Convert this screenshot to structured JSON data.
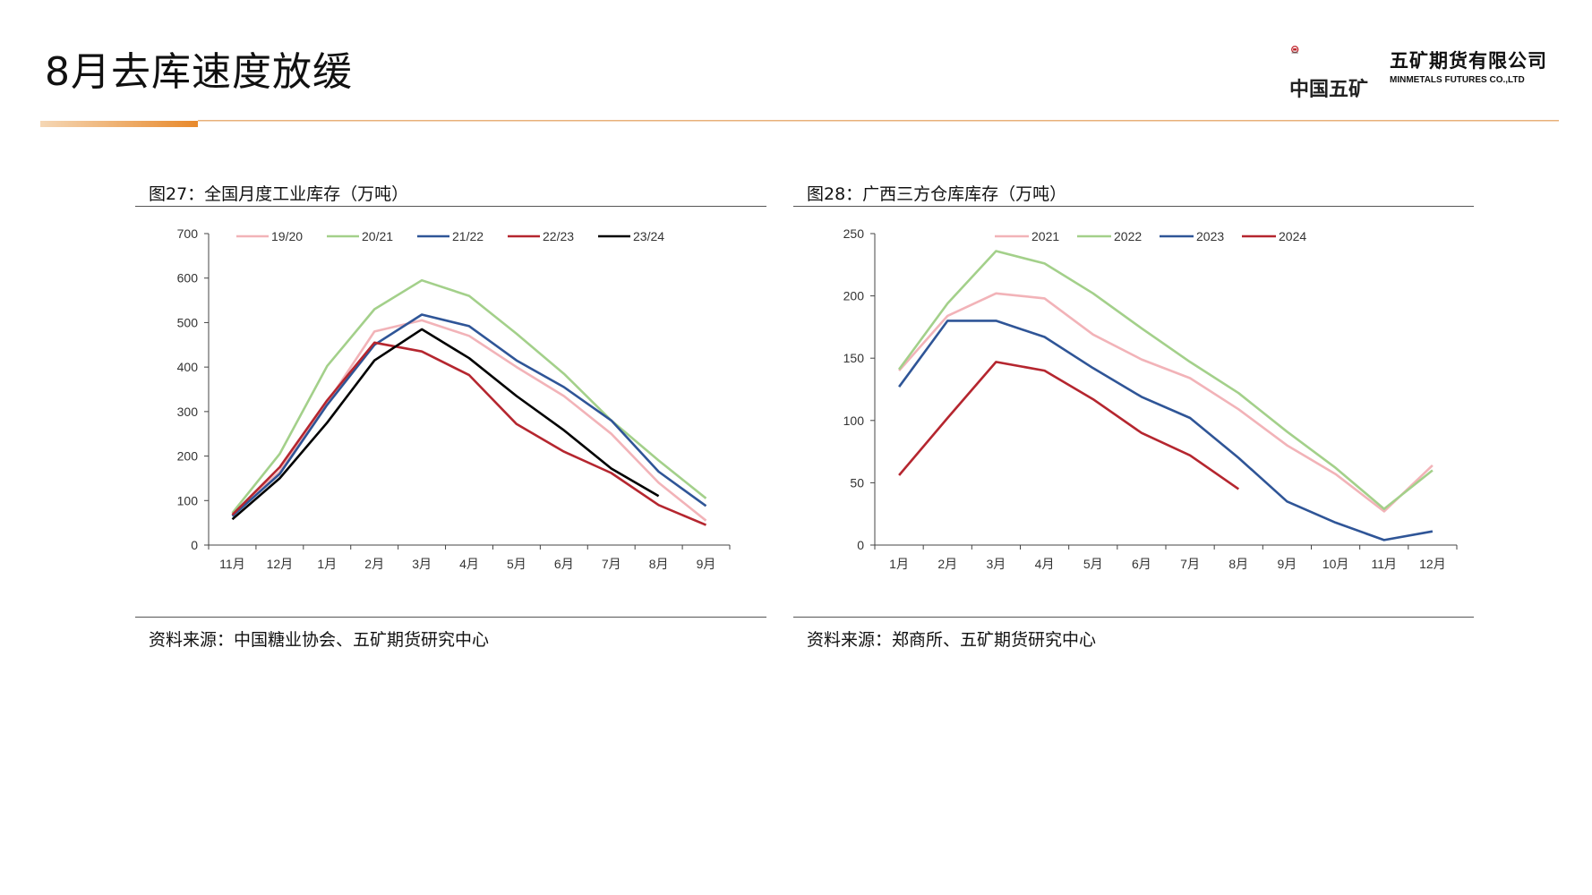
{
  "page": {
    "title": "8月去库速度放缓"
  },
  "logo": {
    "cn_name": "中国五矿",
    "company_cn": "五矿期货有限公司",
    "company_en": "MINMETALS FUTURES CO.,LTD",
    "emblem_text": "MINMETALS"
  },
  "colors": {
    "accent": "#e8892b",
    "accent_light": "#f5d7b5"
  },
  "chart_data": [
    {
      "type": "line",
      "title": "图27：全国月度工业库存（万吨）",
      "source": "资料来源：中国糖业协会、五矿期货研究中心",
      "categories": [
        "11月",
        "12月",
        "1月",
        "2月",
        "3月",
        "4月",
        "5月",
        "6月",
        "7月",
        "8月",
        "9月"
      ],
      "ylim": [
        0,
        700
      ],
      "yticks": [
        0,
        100,
        200,
        300,
        400,
        500,
        600,
        700
      ],
      "legend_position": "top",
      "series": [
        {
          "name": "19/20",
          "color": "#f2b3b8",
          "values": [
            68,
            165,
            320,
            480,
            505,
            470,
            400,
            335,
            250,
            140,
            55
          ]
        },
        {
          "name": "20/21",
          "color": "#a3d08a",
          "values": [
            72,
            205,
            402,
            530,
            595,
            560,
            475,
            385,
            280,
            190,
            105
          ]
        },
        {
          "name": "21/22",
          "color": "#2f5597",
          "values": [
            65,
            160,
            315,
            450,
            518,
            492,
            415,
            355,
            280,
            165,
            88
          ]
        },
        {
          "name": "22/23",
          "color": "#b5262f",
          "values": [
            68,
            175,
            325,
            455,
            435,
            382,
            272,
            210,
            162,
            90,
            45
          ]
        },
        {
          "name": "23/24",
          "color": "#000000",
          "values": [
            58,
            150,
            275,
            415,
            485,
            420,
            335,
            258,
            172,
            110,
            null
          ]
        }
      ]
    },
    {
      "type": "line",
      "title": "图28：广西三方仓库库存（万吨）",
      "source": "资料来源：郑商所、五矿期货研究中心",
      "categories": [
        "1月",
        "2月",
        "3月",
        "4月",
        "5月",
        "6月",
        "7月",
        "8月",
        "9月",
        "10月",
        "11月",
        "12月"
      ],
      "ylim": [
        0,
        250
      ],
      "yticks": [
        0,
        50,
        100,
        150,
        200,
        250
      ],
      "legend_position": "top",
      "series": [
        {
          "name": "2021",
          "color": "#f2b3b8",
          "values": [
            140,
            184,
            202,
            198,
            169,
            149,
            134,
            109,
            80,
            57,
            27,
            64
          ]
        },
        {
          "name": "2022",
          "color": "#a3d08a",
          "values": [
            141,
            194,
            236,
            226,
            202,
            174,
            147,
            122,
            91,
            62,
            29,
            60
          ]
        },
        {
          "name": "2023",
          "color": "#2f5597",
          "values": [
            127,
            180,
            180,
            167,
            142,
            119,
            102,
            70,
            35,
            18,
            4,
            11
          ]
        },
        {
          "name": "2024",
          "color": "#b5262f",
          "values": [
            56,
            102,
            147,
            140,
            117,
            90,
            72,
            45,
            null,
            null,
            null,
            null
          ]
        }
      ]
    }
  ]
}
